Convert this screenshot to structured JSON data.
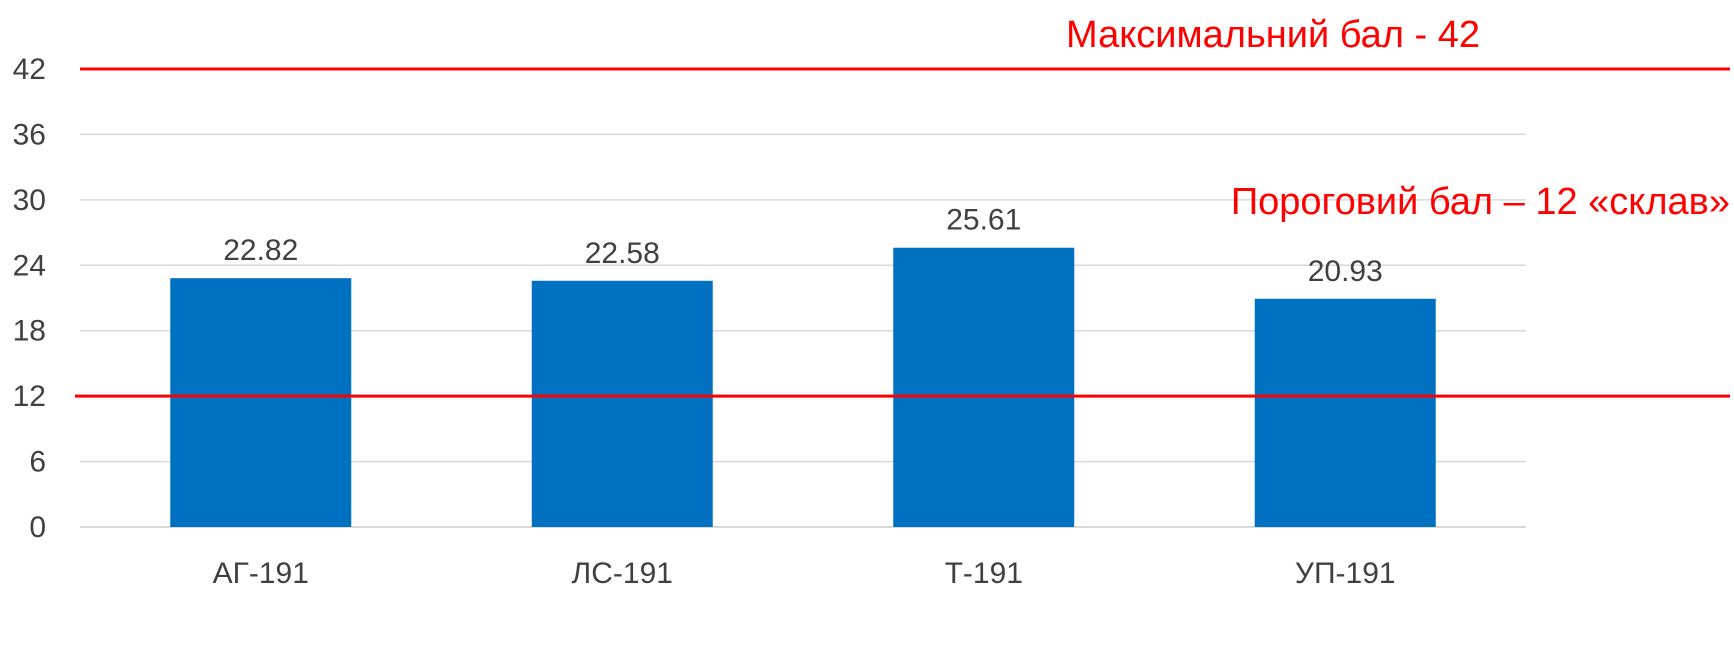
{
  "chart_data": {
    "type": "bar",
    "categories": [
      "АГ-191",
      "ЛС-191",
      "Т-191",
      "УП-191"
    ],
    "values": [
      22.82,
      22.58,
      25.61,
      20.93
    ],
    "data_labels": [
      "22.82",
      "22.58",
      "25.61",
      "20.93"
    ],
    "title": "",
    "xlabel": "",
    "ylabel": "",
    "ylim": [
      0,
      42
    ],
    "yticks": [
      0,
      6,
      12,
      18,
      24,
      30,
      36,
      42
    ],
    "ytick_labels": [
      "0",
      "6",
      "12",
      "18",
      "24",
      "30",
      "36",
      "42"
    ],
    "grid": true,
    "legend": "none",
    "reference_lines": [
      {
        "value": 42,
        "label": "Максимальний бал - 42"
      },
      {
        "value": 12,
        "label": "Пороговий бал – 12 «склав»"
      }
    ]
  },
  "colors": {
    "bar": "#0070C0",
    "reference_line": "#FF0000",
    "gridline": "#D9D9D9",
    "axis_text": "#404040"
  }
}
